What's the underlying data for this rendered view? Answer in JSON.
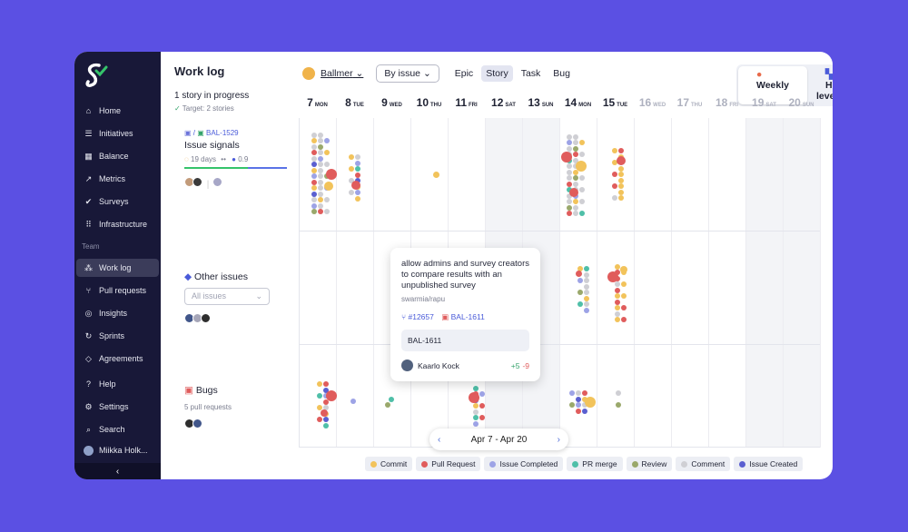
{
  "sidebar": {
    "nav": [
      {
        "label": "Home",
        "icon": "home-icon"
      },
      {
        "label": "Initiatives",
        "icon": "initiatives-icon"
      },
      {
        "label": "Balance",
        "icon": "balance-icon"
      },
      {
        "label": "Metrics",
        "icon": "metrics-icon"
      },
      {
        "label": "Surveys",
        "icon": "surveys-icon"
      },
      {
        "label": "Infrastructure",
        "icon": "infrastructure-icon"
      }
    ],
    "team_label": "Team",
    "team_nav": [
      {
        "label": "Work log",
        "icon": "work-log-icon"
      },
      {
        "label": "Pull requests",
        "icon": "pull-requests-icon"
      },
      {
        "label": "Insights",
        "icon": "insights-icon"
      },
      {
        "label": "Sprints",
        "icon": "sprints-icon"
      },
      {
        "label": "Agreements",
        "icon": "agreements-icon"
      }
    ],
    "bottom": [
      {
        "label": "Help",
        "icon": "help-icon"
      },
      {
        "label": "Settings",
        "icon": "settings-icon"
      },
      {
        "label": "Search",
        "icon": "search-icon"
      },
      {
        "label": "Miikka Holk...",
        "icon": "avatar-icon"
      }
    ],
    "collapse": "‹"
  },
  "header": {
    "title": "Work log",
    "progress": "1 story in progress",
    "target": "Target: 2 stories",
    "user": "Ballmer",
    "group_by": "By issue",
    "filters": [
      "Epic",
      "Story",
      "Task",
      "Bug"
    ],
    "selected_filter": "Story",
    "views": [
      "Weekly",
      "High-level"
    ],
    "selected_view": "Weekly",
    "info": "i"
  },
  "days": [
    {
      "num": "7",
      "dow": "MON",
      "future": false
    },
    {
      "num": "8",
      "dow": "TUE",
      "future": false
    },
    {
      "num": "9",
      "dow": "WED",
      "future": false
    },
    {
      "num": "10",
      "dow": "THU",
      "future": false
    },
    {
      "num": "11",
      "dow": "FRI",
      "future": false
    },
    {
      "num": "12",
      "dow": "SAT",
      "future": false
    },
    {
      "num": "13",
      "dow": "SUN",
      "future": false
    },
    {
      "num": "14",
      "dow": "MON",
      "future": false
    },
    {
      "num": "15",
      "dow": "TUE",
      "future": false
    },
    {
      "num": "16",
      "dow": "WED",
      "future": true
    },
    {
      "num": "17",
      "dow": "THU",
      "future": true
    },
    {
      "num": "18",
      "dow": "FRI",
      "future": true
    },
    {
      "num": "19",
      "dow": "SAT",
      "future": true
    },
    {
      "num": "20",
      "dow": "SUN",
      "future": true
    }
  ],
  "rows": {
    "story": {
      "key": "BAL-1529",
      "name": "Issue signals",
      "days": "19 days",
      "eyes": "••",
      "people": "0.9"
    },
    "other": {
      "name": "Other issues",
      "filter_placeholder": "All issues"
    },
    "bugs": {
      "name": "Bugs",
      "sub": "5 pull requests"
    }
  },
  "tooltip": {
    "title": "allow admins and survey creators to compare results with an unpublished survey",
    "repo": "swarmia/rapu",
    "pr": "#12657",
    "issue": "BAL-1611",
    "box": "BAL-1611",
    "author": "Kaarlo Kock",
    "added": "+5",
    "removed": "-9"
  },
  "range": {
    "label": "Apr 7 - Apr 20",
    "prev": "‹",
    "next": "›"
  },
  "legend": [
    {
      "label": "Commit",
      "color": "#f2c35b"
    },
    {
      "label": "Pull Request",
      "color": "#e05c5c"
    },
    {
      "label": "Issue Completed",
      "color": "#9da3e6"
    },
    {
      "label": "PR merge",
      "color": "#4fbfa8"
    },
    {
      "label": "Review",
      "color": "#9aa86b"
    },
    {
      "label": "Comment",
      "color": "#cfcfd4"
    },
    {
      "label": "Issue Created",
      "color": "#5a5fd0"
    }
  ]
}
